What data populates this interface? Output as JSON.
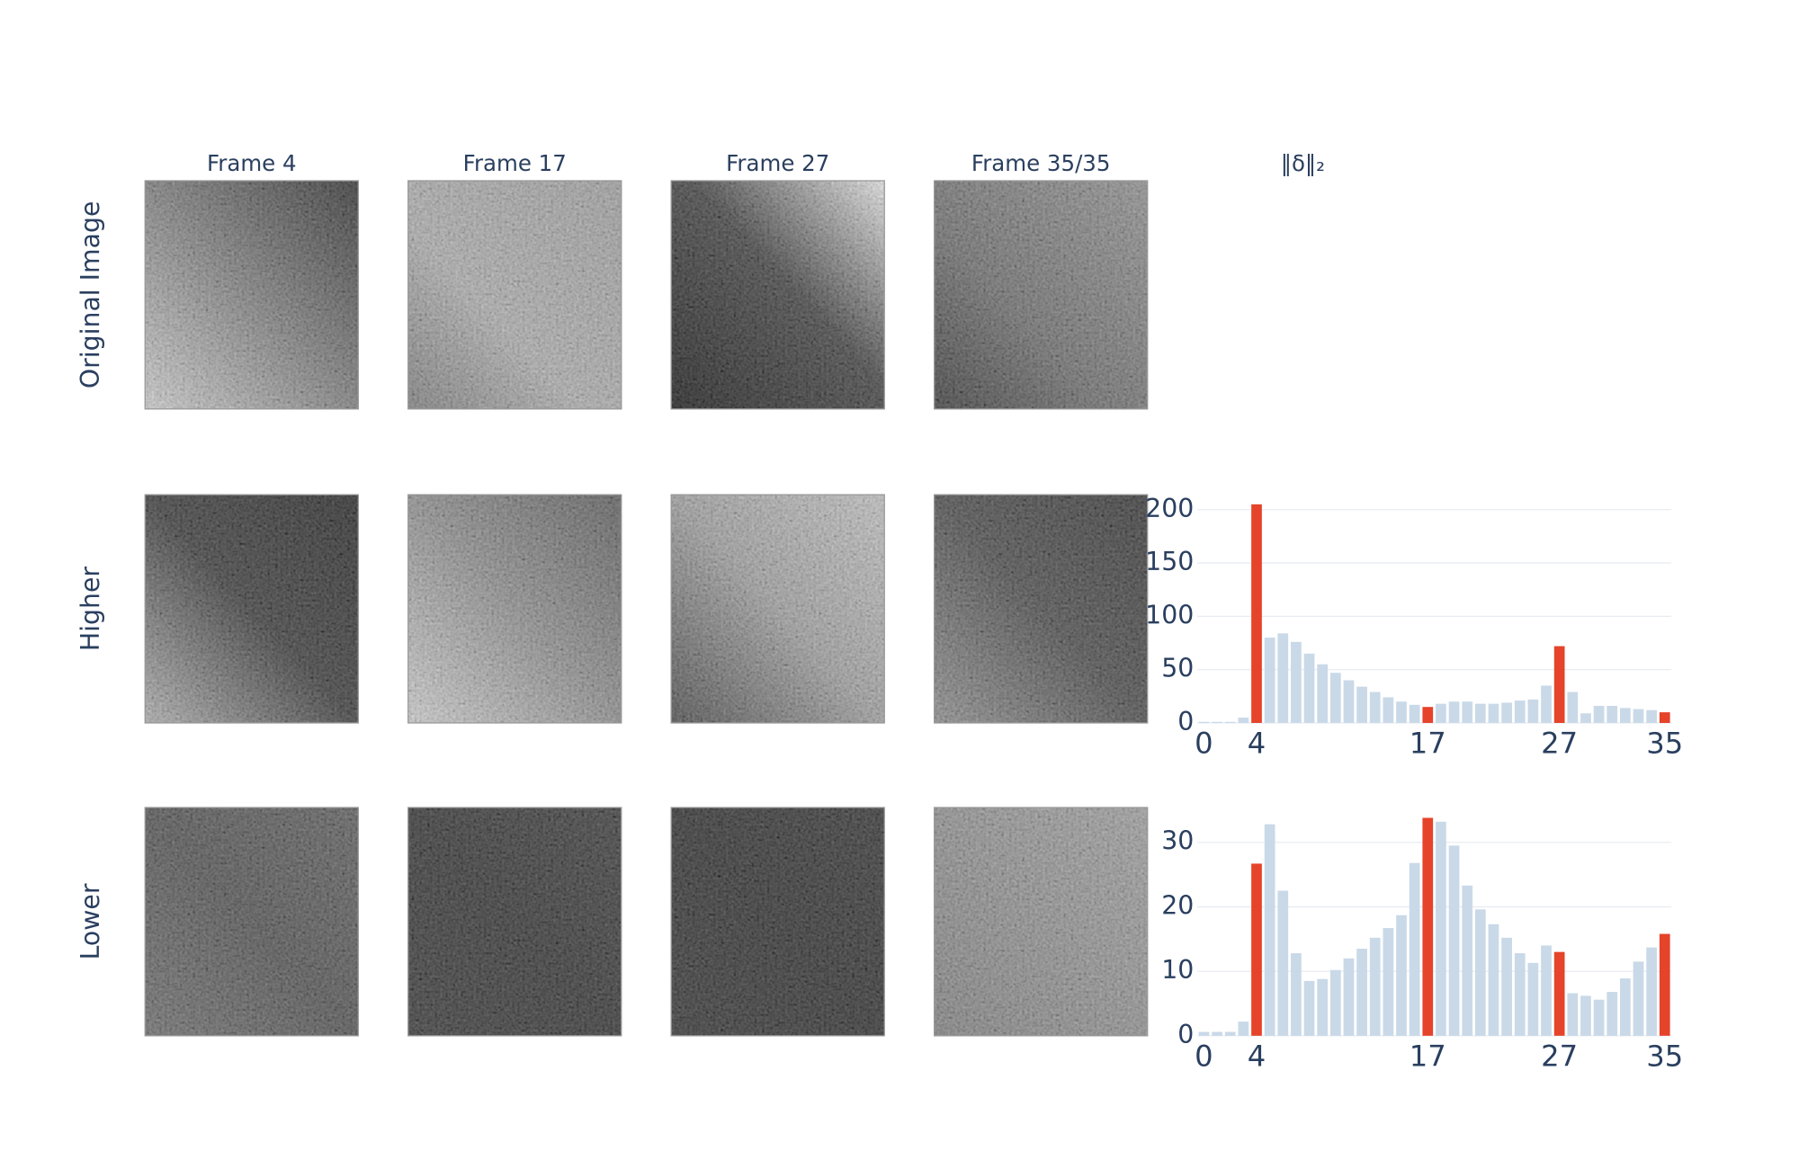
{
  "column_titles": [
    "Frame 4",
    "Frame 17",
    "Frame 27",
    "Frame 35/35",
    "‖δ‖₂"
  ],
  "row_titles": [
    "Original Image",
    "Higher",
    "Lower"
  ],
  "chart_data": [
    {
      "type": "bar",
      "row": "Higher",
      "x": [
        0,
        1,
        2,
        3,
        4,
        5,
        6,
        7,
        8,
        9,
        10,
        11,
        12,
        13,
        14,
        15,
        16,
        17,
        18,
        19,
        20,
        21,
        22,
        23,
        24,
        25,
        26,
        27,
        28,
        29,
        30,
        31,
        32,
        33,
        34,
        35
      ],
      "values": [
        1,
        1,
        1,
        5,
        205,
        80,
        84,
        76,
        65,
        55,
        47,
        40,
        34,
        29,
        24,
        20,
        17,
        15,
        18,
        20,
        20,
        18,
        18,
        19,
        21,
        22,
        35,
        72,
        29,
        9,
        16,
        16,
        14,
        13,
        12,
        10
      ],
      "colors": [
        "#c9d9e8",
        "#c9d9e8",
        "#c9d9e8",
        "#c9d9e8",
        "#e5432a",
        "#c9d9e8",
        "#c9d9e8",
        "#c9d9e8",
        "#c9d9e8",
        "#c9d9e8",
        "#c9d9e8",
        "#c9d9e8",
        "#c9d9e8",
        "#c9d9e8",
        "#c9d9e8",
        "#c9d9e8",
        "#c9d9e8",
        "#e5432a",
        "#c9d9e8",
        "#c9d9e8",
        "#c9d9e8",
        "#c9d9e8",
        "#c9d9e8",
        "#c9d9e8",
        "#c9d9e8",
        "#c9d9e8",
        "#c9d9e8",
        "#e5432a",
        "#c9d9e8",
        "#c9d9e8",
        "#c9d9e8",
        "#c9d9e8",
        "#c9d9e8",
        "#c9d9e8",
        "#c9d9e8",
        "#e5432a"
      ],
      "xlim": [
        -0.5,
        35.5
      ],
      "xticks": [
        0,
        4,
        17,
        27,
        35
      ],
      "ylim": [
        0,
        214
      ],
      "yticks": [
        0,
        50,
        100,
        150,
        200
      ],
      "grid": true
    },
    {
      "type": "bar",
      "row": "Lower",
      "x": [
        0,
        1,
        2,
        3,
        4,
        5,
        6,
        7,
        8,
        9,
        10,
        11,
        12,
        13,
        14,
        15,
        16,
        17,
        18,
        19,
        20,
        21,
        22,
        23,
        24,
        25,
        26,
        27,
        28,
        29,
        30,
        31,
        32,
        33,
        34,
        35
      ],
      "values": [
        0.6,
        0.6,
        0.6,
        2.2,
        26.7,
        32.8,
        22.5,
        12.8,
        8.5,
        8.8,
        10.2,
        12,
        13.5,
        15.2,
        16.7,
        18.7,
        26.8,
        33.8,
        33.2,
        29.5,
        23.3,
        19.6,
        17.3,
        15.2,
        12.8,
        11.3,
        14,
        13,
        6.6,
        6.2,
        5.6,
        6.8,
        8.9,
        11.5,
        13.7,
        15.8
      ],
      "colors": [
        "#c9d9e8",
        "#c9d9e8",
        "#c9d9e8",
        "#c9d9e8",
        "#e5432a",
        "#c9d9e8",
        "#c9d9e8",
        "#c9d9e8",
        "#c9d9e8",
        "#c9d9e8",
        "#c9d9e8",
        "#c9d9e8",
        "#c9d9e8",
        "#c9d9e8",
        "#c9d9e8",
        "#c9d9e8",
        "#c9d9e8",
        "#e5432a",
        "#c9d9e8",
        "#c9d9e8",
        "#c9d9e8",
        "#c9d9e8",
        "#c9d9e8",
        "#c9d9e8",
        "#c9d9e8",
        "#c9d9e8",
        "#c9d9e8",
        "#e5432a",
        "#c9d9e8",
        "#c9d9e8",
        "#c9d9e8",
        "#c9d9e8",
        "#c9d9e8",
        "#c9d9e8",
        "#c9d9e8",
        "#e5432a"
      ],
      "xlim": [
        -0.5,
        35.5
      ],
      "xticks": [
        0,
        4,
        17,
        27,
        35
      ],
      "ylim": [
        0,
        35.4
      ],
      "yticks": [
        0,
        10,
        20,
        30
      ],
      "grid": true
    }
  ]
}
